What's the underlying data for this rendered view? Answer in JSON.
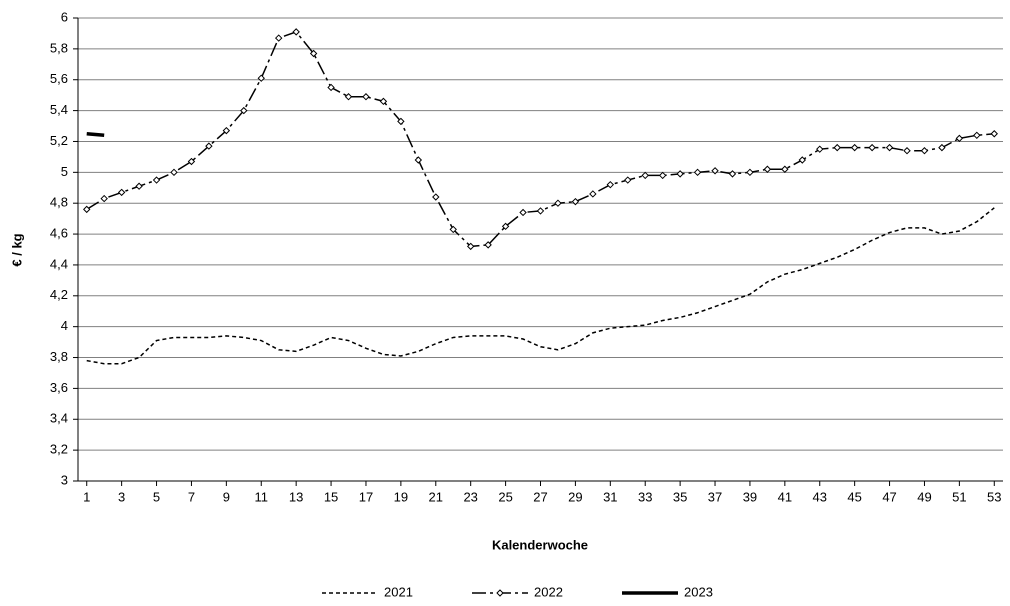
{
  "chart_data": {
    "type": "line",
    "y_label": "€ / kg",
    "x_label": "Kalenderwoche",
    "x": [
      1,
      2,
      3,
      4,
      5,
      6,
      7,
      8,
      9,
      10,
      11,
      12,
      13,
      14,
      15,
      16,
      17,
      18,
      19,
      20,
      21,
      22,
      23,
      24,
      25,
      26,
      27,
      28,
      29,
      30,
      31,
      32,
      33,
      34,
      35,
      36,
      37,
      38,
      39,
      40,
      41,
      42,
      43,
      44,
      45,
      46,
      47,
      48,
      49,
      50,
      51,
      52,
      53
    ],
    "xlim": [
      0.5,
      53.5
    ],
    "xticks": [
      1,
      3,
      5,
      7,
      9,
      11,
      13,
      15,
      17,
      19,
      21,
      23,
      25,
      27,
      29,
      31,
      33,
      35,
      37,
      39,
      41,
      43,
      45,
      47,
      49,
      51,
      53
    ],
    "ylim": [
      3,
      6
    ],
    "yticks": [
      3,
      {
        "value": 3.2,
        "label": "3,2"
      },
      {
        "value": 3.4,
        "label": "3,4"
      },
      {
        "value": 3.6,
        "label": "3,6"
      },
      {
        "value": 3.8,
        "label": "3,8"
      },
      4,
      {
        "value": 4.2,
        "label": "4,2"
      },
      {
        "value": 4.4,
        "label": "4,4"
      },
      {
        "value": 4.6,
        "label": "4,6"
      },
      {
        "value": 4.8,
        "label": "4,8"
      },
      5,
      {
        "value": 5.2,
        "label": "5,2"
      },
      {
        "value": 5.4,
        "label": "5,4"
      },
      {
        "value": 5.6,
        "label": "5,6"
      },
      {
        "value": 5.8,
        "label": "5,8"
      },
      6
    ],
    "grid": true,
    "legend": "bottom",
    "series": [
      {
        "name": "2021",
        "color": "#000000",
        "style": "dashed",
        "values": [
          3.78,
          3.76,
          3.76,
          3.8,
          3.91,
          3.93,
          3.93,
          3.93,
          3.94,
          3.93,
          3.91,
          3.85,
          3.84,
          3.88,
          3.93,
          3.91,
          3.86,
          3.82,
          3.81,
          3.84,
          3.89,
          3.93,
          3.94,
          3.94,
          3.94,
          3.92,
          3.87,
          3.85,
          3.89,
          3.96,
          3.99,
          4.0,
          4.01,
          4.04,
          4.06,
          4.09,
          4.13,
          4.17,
          4.21,
          4.29,
          4.34,
          4.37,
          4.41,
          4.45,
          4.5,
          4.56,
          4.61,
          4.64,
          4.64,
          4.6,
          4.62,
          4.68,
          4.77
        ]
      },
      {
        "name": "2022",
        "color": "#000000",
        "style": "dash-dot",
        "marker": "diamond",
        "values": [
          4.76,
          4.83,
          4.87,
          4.91,
          4.95,
          5.0,
          5.07,
          5.17,
          5.27,
          5.4,
          5.61,
          5.87,
          5.91,
          5.77,
          5.55,
          5.49,
          5.49,
          5.46,
          5.33,
          5.08,
          4.84,
          4.63,
          4.52,
          4.53,
          4.65,
          4.74,
          4.75,
          4.8,
          4.81,
          4.86,
          4.92,
          4.95,
          4.98,
          4.98,
          4.99,
          5.0,
          5.01,
          4.99,
          5.0,
          5.02,
          5.02,
          5.08,
          5.15,
          5.16,
          5.16,
          5.16,
          5.16,
          5.14,
          5.14,
          5.16,
          5.22,
          5.24,
          5.25
        ]
      },
      {
        "name": "2023",
        "color": "#000000",
        "style": "solid",
        "values": [
          5.25,
          5.24,
          null,
          null,
          null,
          null,
          null,
          null,
          null,
          null,
          null,
          null,
          null,
          null,
          null,
          null,
          null,
          null,
          null,
          null,
          null,
          null,
          null,
          null,
          null,
          null,
          null,
          null,
          null,
          null,
          null,
          null,
          null,
          null,
          null,
          null,
          null,
          null,
          null,
          null,
          null,
          null,
          null,
          null,
          null,
          null,
          null,
          null,
          null,
          null,
          null,
          null,
          null
        ]
      }
    ]
  }
}
